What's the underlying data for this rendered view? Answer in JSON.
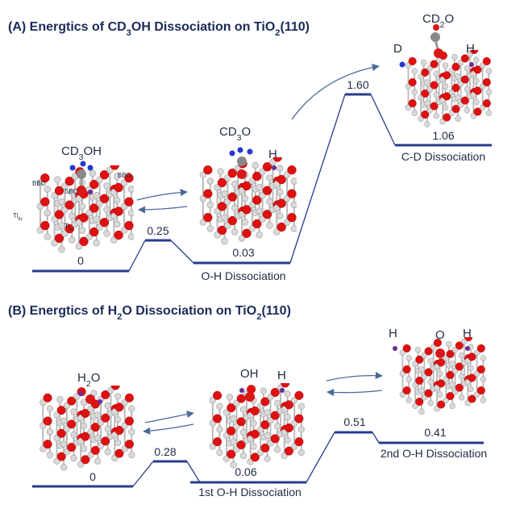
{
  "panel_a": {
    "title": [
      "(A) Energtics of CD",
      "3",
      "OH Dissociation on TiO",
      "2",
      "(110)"
    ],
    "molecules": {
      "initial": [
        "CD",
        "3",
        "OH"
      ],
      "intermediate": [
        "CD",
        "3",
        "O"
      ],
      "intermediate_h": "H",
      "final": [
        "CD",
        "2",
        "O"
      ],
      "final_d": "D",
      "final_h": "H"
    },
    "sites": {
      "bbo_left": "BBO",
      "sbo": "SBO",
      "bbo_right": "BBO",
      "ti6c": [
        "Ti",
        "6c"
      ],
      "ti5c": [
        "Ti",
        "5c"
      ]
    },
    "levels": [
      "0",
      "0.25",
      "0.03",
      "1.60",
      "1.06"
    ],
    "steps": [
      "O-H Dissociation",
      "C-D Dissociation"
    ]
  },
  "panel_b": {
    "title": [
      "(B) Energtics of H",
      "2",
      "O Dissociation on TiO",
      "2",
      "(110)"
    ],
    "molecules": {
      "initial": [
        "H",
        "2",
        "O"
      ],
      "intermediate_oh": "OH",
      "intermediate_h": "H",
      "final_h_left": "H",
      "final_o": "O",
      "final_h_right": "H"
    },
    "levels": [
      "0",
      "0.28",
      "0.06",
      "0.51",
      "0.41"
    ],
    "steps": [
      "1st O-H Dissociation",
      "2nd O-H Dissociation"
    ]
  }
}
